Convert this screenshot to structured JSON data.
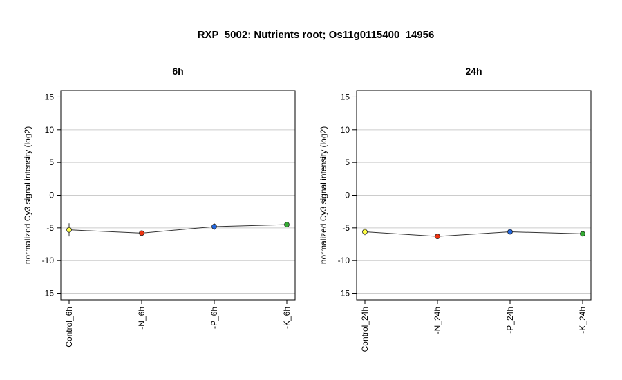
{
  "figure_title": "RXP_5002: Nutrients root; Os11g0115400_14956",
  "chart_data": [
    {
      "type": "line",
      "title": "6h",
      "ylabel": "normalized Cy3 signal intensity (log2)",
      "xlabel": "",
      "ylim": [
        -16,
        16
      ],
      "yticks": [
        -15,
        -10,
        -5,
        0,
        5,
        10,
        15
      ],
      "grid": true,
      "categories": [
        "Control_6h",
        "-N_6h",
        "-P_6h",
        "-K_6h"
      ],
      "values": [
        -5.3,
        -5.8,
        -4.8,
        -4.5
      ],
      "errors": [
        1.0,
        0.2,
        0.5,
        0.2
      ],
      "point_colors": [
        "#ffff44",
        "#ee3311",
        "#2266dd",
        "#33aa33"
      ]
    },
    {
      "type": "line",
      "title": "24h",
      "ylabel": "normalized Cy3 signal intensity (log2)",
      "xlabel": "",
      "ylim": [
        -16,
        16
      ],
      "yticks": [
        -15,
        -10,
        -5,
        0,
        5,
        10,
        15
      ],
      "grid": true,
      "categories": [
        "Control_24h",
        "-N_24h",
        "-P_24h",
        "-K_24h"
      ],
      "values": [
        -5.6,
        -6.3,
        -5.6,
        -5.9
      ],
      "errors": [
        0.5,
        0.3,
        0.2,
        0.2
      ],
      "point_colors": [
        "#ffff44",
        "#ee3311",
        "#2266dd",
        "#33aa33"
      ]
    }
  ]
}
